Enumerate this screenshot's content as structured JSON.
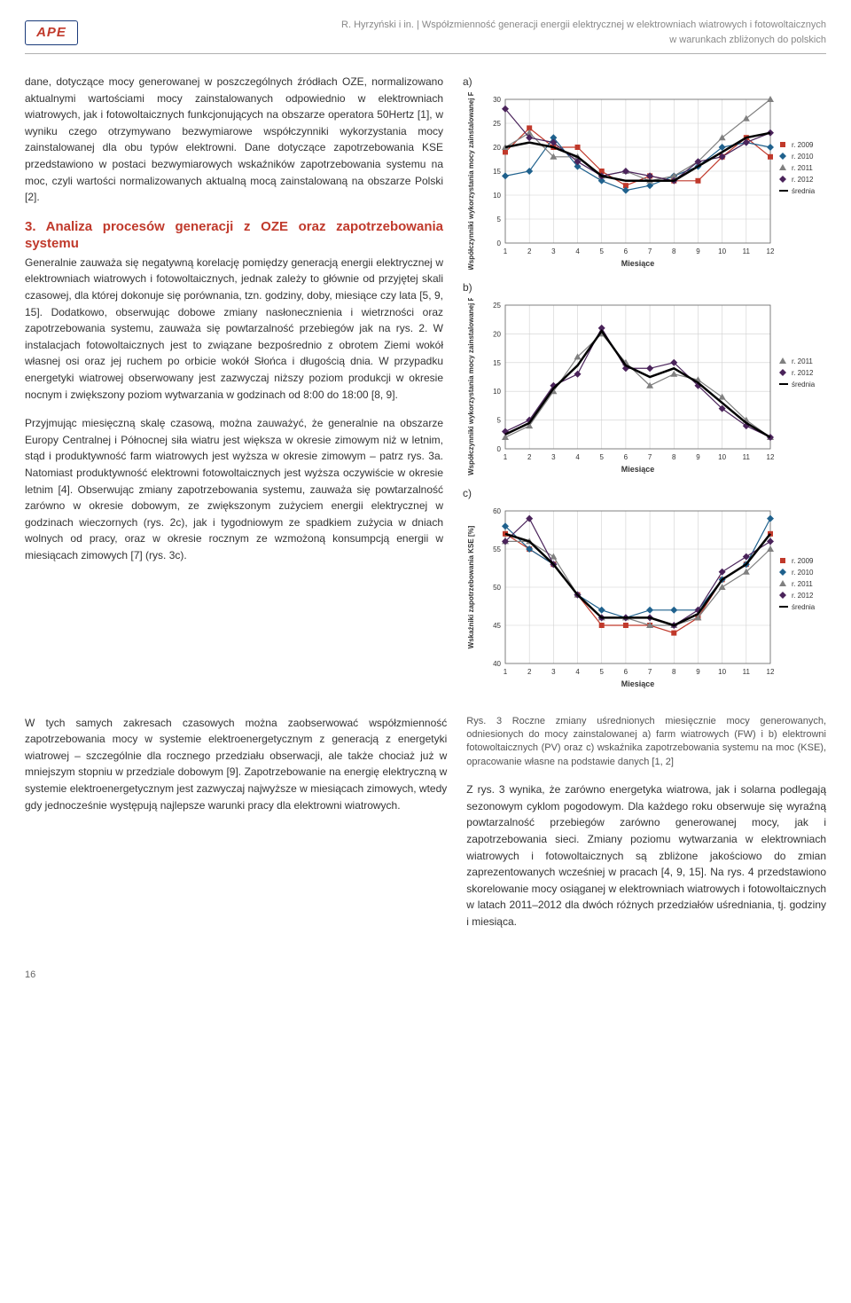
{
  "header": {
    "logo_text": "APE",
    "byline": "R. Hyrzyński i in. | Współzmienność generacji energii elektrycznej w elektrowniach wiatrowych i fotowoltaicznych",
    "byline2": "w warunkach zbliżonych do polskich"
  },
  "left_column": {
    "para1": "dane, dotyczące mocy generowanej w poszczególnych źródłach OZE, normalizowano aktualnymi wartościami mocy zainstalowanych odpowiednio w elektrowniach wiatrowych, jak i fotowoltaicznych funkcjonujących na obszarze operatora 50Hertz [1], w wyniku czego otrzymywano bezwymiarowe współczynniki wykorzystania mocy zainstalowanej dla obu typów elektrowni. Dane dotyczące zapotrzebowania KSE przedstawiono w postaci bezwymiarowych wskaźników zapotrzebowania systemu na moc, czyli wartości normalizowanych aktualną mocą zainstalowaną na obszarze Polski [2].",
    "section_title": "3. Analiza procesów generacji z OZE oraz zapotrzebowania systemu",
    "para2": "Generalnie zauważa się negatywną korelację pomiędzy generacją energii elektrycznej w elektrowniach wiatrowych i fotowoltaicznych, jednak zależy to głównie od przyjętej skali czasowej, dla której dokonuje się porównania, tzn. godziny, doby, miesiące czy lata [5, 9, 15]. Dodatkowo, obserwując dobowe zmiany nasłonecznienia i wietrzności oraz zapotrzebowania systemu, zauważa się powtarzalność przebiegów jak na rys. 2. W instalacjach fotowoltaicznych jest to związane bezpośrednio z obrotem Ziemi wokół własnej osi oraz jej ruchem po orbicie wokół Słońca i długością dnia. W przypadku energetyki wiatrowej obserwowany jest zazwyczaj niższy poziom produkcji w okresie nocnym i zwiększony poziom wytwarzania w godzinach od 8:00 do 18:00 [8, 9].",
    "para3": "Przyjmując miesięczną skalę czasową, można zauważyć, że generalnie na obszarze Europy Centralnej i Północnej siła wiatru jest większa w okresie zimowym niż w letnim, stąd i produktywność farm wiatrowych jest wyższa w okresie zimowym – patrz rys. 3a. Natomiast produktywność elektrowni fotowoltaicznych jest wyższa oczywiście w okresie letnim [4]. Obserwując zmiany zapotrzebowania systemu, zauważa się powtarzalność zarówno w okresie dobowym, ze zwiększonym zużyciem energii elektrycznej w godzinach wieczornych (rys. 2c), jak i tygodniowym ze spadkiem zużycia w dniach wolnych od pracy, oraz w okresie rocznym ze wzmożoną konsumpcją energii w miesiącach zimowych [7] (rys. 3c)."
  },
  "charts": {
    "a": {
      "label": "a)",
      "type": "line",
      "x": [
        1,
        2,
        3,
        4,
        5,
        6,
        7,
        8,
        9,
        10,
        11,
        12
      ],
      "xlabel": "Miesiące",
      "ylabel": "Współczynniki wykorzystania mocy zainstalowanej FW [%]",
      "ylim": [
        0,
        30
      ],
      "ytick_step": 5,
      "series": [
        {
          "name": "r. 2009",
          "color": "#c0392b",
          "marker": "square",
          "values": [
            19,
            24,
            20,
            20,
            15,
            12,
            14,
            13,
            13,
            18,
            22,
            18
          ]
        },
        {
          "name": "r. 2010",
          "color": "#1f618d",
          "marker": "diamond",
          "values": [
            14,
            15,
            22,
            16,
            13,
            11,
            12,
            14,
            16,
            20,
            21,
            20
          ]
        },
        {
          "name": "r. 2011",
          "color": "#808080",
          "marker": "triangle",
          "values": [
            20,
            23,
            18,
            18,
            14,
            15,
            13,
            14,
            17,
            22,
            26,
            30
          ]
        },
        {
          "name": "r. 2012",
          "color": "#4a235a",
          "marker": "diamond",
          "values": [
            28,
            22,
            21,
            17,
            14,
            15,
            14,
            13,
            17,
            18,
            21,
            23
          ]
        },
        {
          "name": "średnia",
          "color": "#000000",
          "marker": "none",
          "values": [
            20,
            21,
            20,
            18,
            14,
            13,
            13,
            13,
            16,
            19,
            22,
            23
          ],
          "thick": true
        }
      ],
      "background_color": "#ffffff",
      "grid_color": "#d0d0d0",
      "label_fontsize": 8
    },
    "b": {
      "label": "b)",
      "type": "line",
      "x": [
        1,
        2,
        3,
        4,
        5,
        6,
        7,
        8,
        9,
        10,
        11,
        12
      ],
      "xlabel": "Miesiące",
      "ylabel": "Współczynniki wykorzystania mocy zainstalowanej PV [%]",
      "ylim": [
        0,
        25
      ],
      "ytick_step": 5,
      "series": [
        {
          "name": "r. 2011",
          "color": "#808080",
          "marker": "triangle",
          "values": [
            2,
            4,
            10,
            16,
            20,
            15,
            11,
            13,
            12,
            9,
            5,
            2
          ]
        },
        {
          "name": "r. 2012",
          "color": "#4a235a",
          "marker": "diamond",
          "values": [
            3,
            5,
            11,
            13,
            21,
            14,
            14,
            15,
            11,
            7,
            4,
            2
          ]
        },
        {
          "name": "średnia",
          "color": "#000000",
          "marker": "none",
          "values": [
            2.5,
            4.5,
            10.5,
            14.5,
            20.5,
            14.5,
            12.5,
            14,
            11.5,
            8,
            4.5,
            2
          ],
          "thick": true
        }
      ],
      "background_color": "#ffffff",
      "grid_color": "#d0d0d0",
      "label_fontsize": 8
    },
    "c": {
      "label": "c)",
      "type": "line",
      "x": [
        1,
        2,
        3,
        4,
        5,
        6,
        7,
        8,
        9,
        10,
        11,
        12
      ],
      "xlabel": "Miesiące",
      "ylabel": "Wskaźniki zapotrzebowania KSE [%]",
      "ylim": [
        40,
        60
      ],
      "ytick_step": 5,
      "series": [
        {
          "name": "r. 2009",
          "color": "#c0392b",
          "marker": "square",
          "values": [
            57,
            55,
            53,
            49,
            45,
            45,
            45,
            44,
            46,
            51,
            53,
            57
          ]
        },
        {
          "name": "r. 2010",
          "color": "#1f618d",
          "marker": "diamond",
          "values": [
            58,
            55,
            53,
            49,
            47,
            46,
            47,
            47,
            47,
            51,
            53,
            59
          ]
        },
        {
          "name": "r. 2011",
          "color": "#808080",
          "marker": "triangle",
          "values": [
            56,
            56,
            54,
            49,
            46,
            46,
            45,
            45,
            46,
            50,
            52,
            55
          ]
        },
        {
          "name": "r. 2012",
          "color": "#4a235a",
          "marker": "diamond",
          "values": [
            56,
            59,
            53,
            49,
            46,
            46,
            46,
            45,
            47,
            52,
            54,
            56
          ]
        },
        {
          "name": "średnia",
          "color": "#000000",
          "marker": "none",
          "values": [
            57,
            56,
            53,
            49,
            46,
            46,
            46,
            45,
            46.5,
            51,
            53,
            57
          ],
          "thick": true
        }
      ],
      "background_color": "#ffffff",
      "grid_color": "#d0d0d0",
      "label_fontsize": 8
    }
  },
  "lower": {
    "left": "W tych samych zakresach czasowych można zaobserwować współzmienność zapotrzebowania mocy w systemie elektroenergetycznym z generacją z energetyki wiatrowej – szczególnie dla rocznego przedziału obserwacji, ale także chociaż już w mniejszym stopniu w przedziale dobowym [9]. Zapotrzebowanie na energię elektryczną w systemie elektroenergetycznym jest zazwyczaj najwyższe w miesiącach zimowych, wtedy gdy jednocześnie występują najlepsze warunki pracy dla elektrowni wiatrowych.",
    "fig_caption": "Rys. 3 Roczne zmiany uśrednionych miesięcznie mocy generowanych, odniesionych do mocy zainstalowanej a) farm wiatrowych (FW) i b) elektrowni fotowoltaicznych (PV) oraz c) wskaźnika zapotrzebowania systemu na moc (KSE), opracowanie własne na podstawie danych [1, 2]",
    "right": "Z rys. 3 wynika, że zarówno energetyka wiatrowa, jak i solarna podlegają sezonowym cyklom pogodowym. Dla każdego roku obserwuje się wyraźną powtarzalność przebiegów zarówno generowanej mocy, jak i zapotrzebowania sieci. Zmiany poziomu wytwarzania w elektrowniach wiatrowych i fotowoltaicznych są zbliżone jakościowo do zmian zaprezentowanych wcześniej w pracach [4, 9, 15]. Na rys. 4 przedstawiono skorelowanie mocy osiąganej w elektrowniach wiatrowych i fotowoltaicznych w latach 2011–2012 dla dwóch różnych przedziałów uśredniania, tj. godziny i miesiąca."
  },
  "page_number": "16"
}
